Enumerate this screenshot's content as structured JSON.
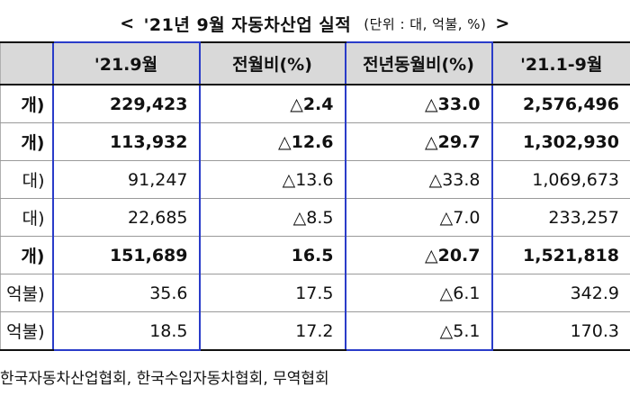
{
  "title": {
    "open": "<",
    "text": "'21년  9월  자동차산업  실적",
    "unit": "(단위 : 대, 억불, %)",
    "close": ">"
  },
  "table": {
    "headers": [
      "",
      "'21.9월",
      "전월비(%)",
      "전년동월비(%)",
      "'21.1-9월"
    ],
    "rows": [
      {
        "label": "개)",
        "values": [
          "229,423",
          "△2.4",
          "△33.0",
          "2,576,496"
        ],
        "bold": true
      },
      {
        "label": "개)",
        "values": [
          "113,932",
          "△12.6",
          "△29.7",
          "1,302,930"
        ],
        "bold": true
      },
      {
        "label": "대)",
        "values": [
          "91,247",
          "△13.6",
          "△33.8",
          "1,069,673"
        ],
        "bold": false
      },
      {
        "label": "대)",
        "values": [
          "22,685",
          "△8.5",
          "△7.0",
          "233,257"
        ],
        "bold": false
      },
      {
        "label": "개)",
        "values": [
          "151,689",
          "16.5",
          "△20.7",
          "1,521,818"
        ],
        "bold": true
      },
      {
        "label": "억불)",
        "values": [
          "35.6",
          "17.5",
          "△6.1",
          "342.9"
        ],
        "bold": false
      },
      {
        "label": "억불)",
        "values": [
          "18.5",
          "17.2",
          "△5.1",
          "170.3"
        ],
        "bold": false
      }
    ]
  },
  "source": "한국자동차산업협회, 한국수입자동차협회, 무역협회"
}
